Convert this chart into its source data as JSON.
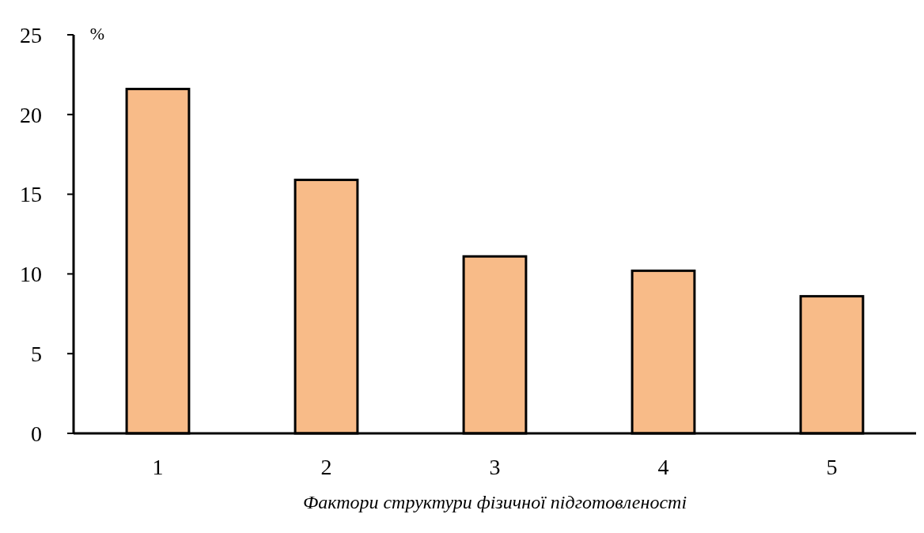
{
  "chart_data": {
    "type": "bar",
    "ylabel": "%",
    "xlabel": "Фактори структури фізичної підготовленості",
    "categories": [
      "1",
      "2",
      "3",
      "4",
      "5"
    ],
    "values": [
      21.6,
      15.9,
      11.1,
      10.2,
      8.6
    ],
    "color": "#f8bb88",
    "ylim": [
      0,
      25
    ],
    "yticks": [
      0,
      5,
      10,
      15,
      20,
      25
    ],
    "grid": false
  }
}
